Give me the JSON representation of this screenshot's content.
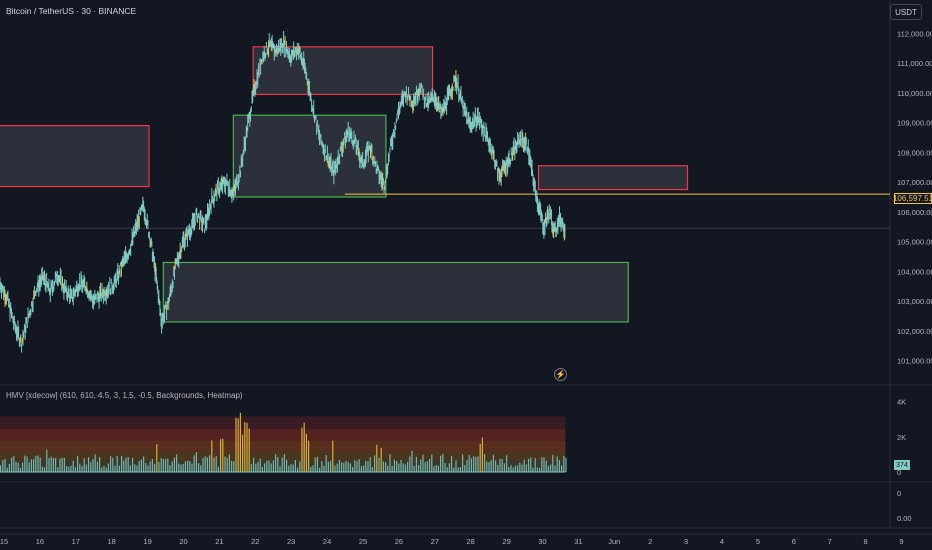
{
  "header": {
    "symbol_title": "Bitcoin / TetherUS · 30 · BINANCE",
    "currency_label": "USDT"
  },
  "indicator": {
    "title": "HMV [xdecow] (610, 610, 4.5, 3, 1.5, -0.5, Backgrounds, Heatmap)",
    "volume_last_label": "374"
  },
  "icons": {
    "replay": "lightning-icon"
  },
  "colors": {
    "background": "#131722",
    "candle_up": "#80cbc4",
    "candle_flash": "#f0c53f",
    "box_supply": "#f23645",
    "box_demand": "#4caf50",
    "box_fill": "#787b86",
    "price_line": "#f0c53f"
  },
  "chart_data": {
    "type": "line",
    "title": "Bitcoin / TetherUS · 30 · BINANCE",
    "y_axis_ticks": [
      "112,000.00",
      "111,000.00",
      "110,000.00",
      "109,000.00",
      "108,000.00",
      "107,000.00",
      "106,000.00",
      "105,000.00",
      "104,000.00",
      "103,000.00",
      "102,000.00",
      "101,000.00"
    ],
    "y_tick_values": [
      112000,
      111000,
      110000,
      109000,
      108000,
      107000,
      106000,
      105000,
      104000,
      103000,
      102000,
      101000
    ],
    "ylim": [
      100500,
      112500
    ],
    "x_axis_ticks": [
      "15",
      "16",
      "17",
      "18",
      "19",
      "20",
      "21",
      "22",
      "23",
      "24",
      "25",
      "26",
      "27",
      "28",
      "29",
      "30",
      "31",
      "Jun",
      "2",
      "3",
      "4",
      "5",
      "6",
      "7",
      "8",
      "9"
    ],
    "x_tick_values": [
      15,
      16,
      17,
      18,
      19,
      20,
      21,
      22,
      23,
      24,
      25,
      26,
      27,
      28,
      29,
      30,
      31,
      32,
      33,
      34,
      35,
      36,
      37,
      38,
      39,
      40
    ],
    "xlim": [
      15,
      40
    ],
    "current_price": 106597.51,
    "current_price_label": "106,597.51",
    "price_path": [
      {
        "x": 15.0,
        "y": 103600
      },
      {
        "x": 15.2,
        "y": 103100
      },
      {
        "x": 15.4,
        "y": 102200
      },
      {
        "x": 15.6,
        "y": 101600
      },
      {
        "x": 15.8,
        "y": 102500
      },
      {
        "x": 16.0,
        "y": 103400
      },
      {
        "x": 16.2,
        "y": 103800
      },
      {
        "x": 16.4,
        "y": 103300
      },
      {
        "x": 16.6,
        "y": 103900
      },
      {
        "x": 16.8,
        "y": 103400
      },
      {
        "x": 17.0,
        "y": 103100
      },
      {
        "x": 17.2,
        "y": 103600
      },
      {
        "x": 17.4,
        "y": 103500
      },
      {
        "x": 17.6,
        "y": 103000
      },
      {
        "x": 17.8,
        "y": 103200
      },
      {
        "x": 18.0,
        "y": 103400
      },
      {
        "x": 18.2,
        "y": 103600
      },
      {
        "x": 18.4,
        "y": 104200
      },
      {
        "x": 18.6,
        "y": 104700
      },
      {
        "x": 18.8,
        "y": 105500
      },
      {
        "x": 19.0,
        "y": 106200
      },
      {
        "x": 19.2,
        "y": 105000
      },
      {
        "x": 19.35,
        "y": 103800
      },
      {
        "x": 19.5,
        "y": 102300
      },
      {
        "x": 19.7,
        "y": 103000
      },
      {
        "x": 19.9,
        "y": 104200
      },
      {
        "x": 20.1,
        "y": 105000
      },
      {
        "x": 20.3,
        "y": 105400
      },
      {
        "x": 20.5,
        "y": 105900
      },
      {
        "x": 20.7,
        "y": 105500
      },
      {
        "x": 20.9,
        "y": 106400
      },
      {
        "x": 21.1,
        "y": 106800
      },
      {
        "x": 21.3,
        "y": 107000
      },
      {
        "x": 21.5,
        "y": 106600
      },
      {
        "x": 21.7,
        "y": 107400
      },
      {
        "x": 21.9,
        "y": 108900
      },
      {
        "x": 22.1,
        "y": 110200
      },
      {
        "x": 22.3,
        "y": 111200
      },
      {
        "x": 22.5,
        "y": 111600
      },
      {
        "x": 22.7,
        "y": 111400
      },
      {
        "x": 22.9,
        "y": 111700
      },
      {
        "x": 23.1,
        "y": 111200
      },
      {
        "x": 23.3,
        "y": 111500
      },
      {
        "x": 23.5,
        "y": 110800
      },
      {
        "x": 23.7,
        "y": 109600
      },
      {
        "x": 23.9,
        "y": 108500
      },
      {
        "x": 24.1,
        "y": 107900
      },
      {
        "x": 24.3,
        "y": 107300
      },
      {
        "x": 24.5,
        "y": 108100
      },
      {
        "x": 24.7,
        "y": 108700
      },
      {
        "x": 24.9,
        "y": 108300
      },
      {
        "x": 25.1,
        "y": 107600
      },
      {
        "x": 25.3,
        "y": 108200
      },
      {
        "x": 25.5,
        "y": 107400
      },
      {
        "x": 25.7,
        "y": 106900
      },
      {
        "x": 25.9,
        "y": 108300
      },
      {
        "x": 26.1,
        "y": 109400
      },
      {
        "x": 26.3,
        "y": 110000
      },
      {
        "x": 26.5,
        "y": 109700
      },
      {
        "x": 26.7,
        "y": 110200
      },
      {
        "x": 26.9,
        "y": 109600
      },
      {
        "x": 27.1,
        "y": 109900
      },
      {
        "x": 27.3,
        "y": 109300
      },
      {
        "x": 27.5,
        "y": 109900
      },
      {
        "x": 27.7,
        "y": 110500
      },
      {
        "x": 27.9,
        "y": 109500
      },
      {
        "x": 28.1,
        "y": 108900
      },
      {
        "x": 28.3,
        "y": 109200
      },
      {
        "x": 28.5,
        "y": 108700
      },
      {
        "x": 28.7,
        "y": 108100
      },
      {
        "x": 28.9,
        "y": 107200
      },
      {
        "x": 29.1,
        "y": 107600
      },
      {
        "x": 29.3,
        "y": 108000
      },
      {
        "x": 29.5,
        "y": 108500
      },
      {
        "x": 29.7,
        "y": 108200
      },
      {
        "x": 29.85,
        "y": 107100
      },
      {
        "x": 30.0,
        "y": 106200
      },
      {
        "x": 30.15,
        "y": 105500
      },
      {
        "x": 30.3,
        "y": 106000
      },
      {
        "x": 30.45,
        "y": 105300
      },
      {
        "x": 30.6,
        "y": 105800
      },
      {
        "x": 30.75,
        "y": 105400
      }
    ],
    "zones": [
      {
        "kind": "supply",
        "x_start": 14.9,
        "x_end": 19.15,
        "y_low": 106850,
        "y_high": 108900
      },
      {
        "kind": "supply",
        "x_start": 22.05,
        "x_end": 27.05,
        "y_low": 109950,
        "y_high": 111550
      },
      {
        "kind": "supply",
        "x_start": 30.0,
        "x_end": 34.15,
        "y_low": 106750,
        "y_high": 107550
      },
      {
        "kind": "demand",
        "x_start": 21.5,
        "x_end": 25.75,
        "y_low": 106500,
        "y_high": 109250
      },
      {
        "kind": "demand",
        "x_start": 19.55,
        "x_end": 32.5,
        "y_low": 102300,
        "y_high": 104300
      }
    ],
    "volume_panel": {
      "y_ticks": [
        "4K",
        "2K",
        "0"
      ],
      "y_tick_values": [
        4000,
        2000,
        0
      ],
      "last_value": 374
    },
    "lower_panel": {
      "y_ticks": [
        "0",
        "0.00"
      ]
    }
  }
}
